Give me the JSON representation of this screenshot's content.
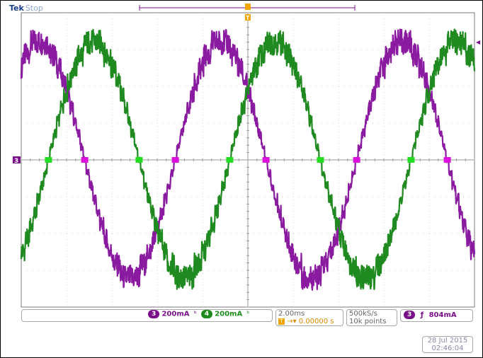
{
  "brand": {
    "name": "Tek",
    "state": "Stop"
  },
  "markers": {
    "ground_label": "3",
    "trigger_label": "T"
  },
  "channels": [
    {
      "number": "3",
      "scale": "200mA",
      "bw_symbol": "ᵇ",
      "color": "#8a1aa0"
    },
    {
      "number": "4",
      "scale": "200mA",
      "bw_symbol": "ᵇ",
      "color": "#1f8a1f"
    }
  ],
  "timebase": {
    "per_div": "2.00ms",
    "delay": "0.00000 s"
  },
  "acquisition": {
    "rate": "500kS/s",
    "record": "10k points"
  },
  "trigger": {
    "source": "3",
    "slope_symbol": "ƒ",
    "level": "804mA"
  },
  "clock": {
    "date": "28 Jul  2015",
    "time": "02:46:04"
  },
  "chart_data": {
    "type": "line",
    "x_divisions": 10,
    "y_divisions": 8,
    "x_unit": "2.00ms/div",
    "series": [
      {
        "name": "3",
        "peak_divs": 3.2,
        "period_divs": 4.0,
        "phase_divs_peak": 0.4,
        "color": "#8a1aa0"
      },
      {
        "name": "4",
        "peak_divs": 3.2,
        "period_divs": 4.0,
        "phase_divs_peak": 1.6,
        "color": "#1f8a1f"
      }
    ]
  }
}
